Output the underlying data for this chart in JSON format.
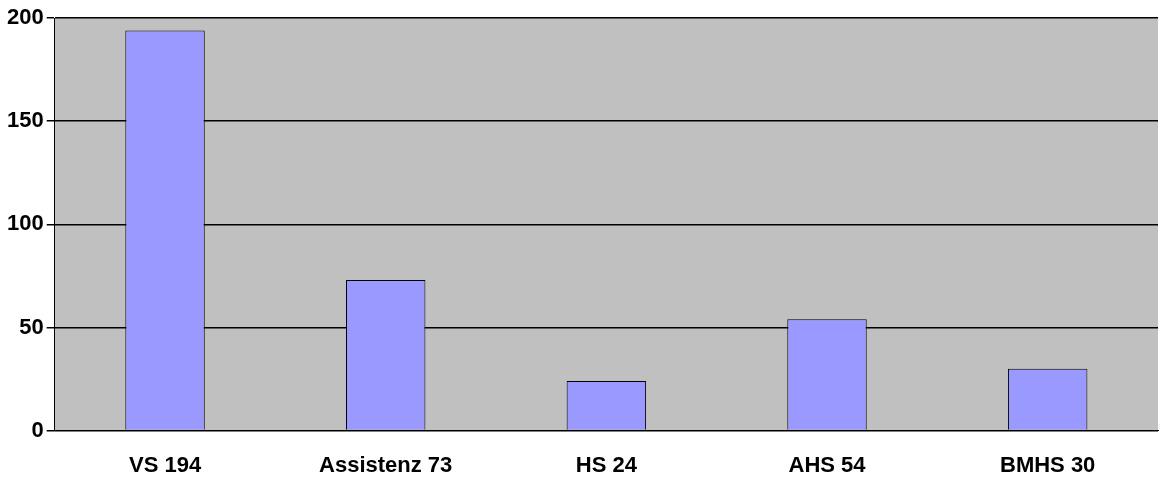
{
  "chart_data": {
    "type": "bar",
    "categories": [
      "VS 194",
      "Assistenz 73",
      "HS 24",
      "AHS 54",
      "BMHS 30"
    ],
    "values": [
      194,
      73,
      24,
      54,
      30
    ],
    "color": "#9999ff",
    "ylim": [
      0,
      200
    ],
    "yticks": [
      0,
      50,
      100,
      150,
      200
    ],
    "grid": "y",
    "legend": false
  }
}
